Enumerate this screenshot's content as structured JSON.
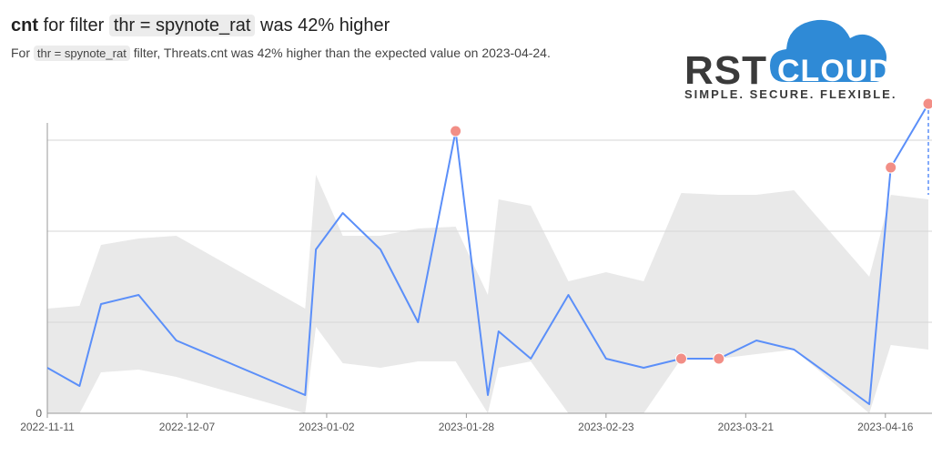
{
  "header": {
    "metric": "cnt",
    "for_filter": "for filter",
    "filter": "thr = spynote_rat",
    "suffix": "was 42% higher"
  },
  "subheader": {
    "prefix": "For",
    "filter": "thr = spynote_rat",
    "text": "filter, Threats.cnt was 42% higher than the expected value on 2023-04-24."
  },
  "logo": {
    "left": "RST",
    "cloud": "CLOUD",
    "tagline": "SIMPLE.  SECURE.  FLEXIBLE.",
    "cloud_color": "#2f8ad6"
  },
  "colors": {
    "line": "#5b8ff9",
    "band": "#e9e9e9",
    "anomaly": "#f28e86",
    "grid": "#d6d6d6",
    "axis": "#999999"
  },
  "chart_data": {
    "type": "line",
    "title": "",
    "xlabel": "",
    "ylabel": "",
    "ylim": [
      0,
      3.2
    ],
    "grid": true,
    "y_ticks": [
      0
    ],
    "x_tick_labels": [
      "2022-11-11",
      "2022-12-07",
      "2023-01-02",
      "2023-01-28",
      "2023-02-23",
      "2023-03-21",
      "2023-04-16"
    ],
    "x_ticks": [
      "2022-11-11",
      "2022-12-07",
      "2023-01-02",
      "2023-01-28",
      "2023-02-23",
      "2023-03-21",
      "2023-04-16"
    ],
    "x_range": [
      "2022-11-11",
      "2023-04-24"
    ],
    "series": [
      {
        "values": [
          [
            "2022-11-11",
            0.5
          ],
          [
            "2022-11-17",
            0.3
          ],
          [
            "2022-11-21",
            1.2
          ],
          [
            "2022-11-28",
            1.3
          ],
          [
            "2022-12-05",
            0.8
          ],
          [
            "2022-12-29",
            0.2
          ],
          [
            "2022-12-31",
            1.8
          ],
          [
            "2023-01-05",
            2.2
          ],
          [
            "2023-01-12",
            1.8
          ],
          [
            "2023-01-19",
            1.0
          ],
          [
            "2023-01-26",
            3.1
          ],
          [
            "2023-02-01",
            0.2
          ],
          [
            "2023-02-03",
            0.9
          ],
          [
            "2023-02-09",
            0.6
          ],
          [
            "2023-02-16",
            1.3
          ],
          [
            "2023-02-23",
            0.6
          ],
          [
            "2023-03-02",
            0.5
          ],
          [
            "2023-03-09",
            0.6
          ],
          [
            "2023-03-16",
            0.6
          ],
          [
            "2023-03-23",
            0.8
          ],
          [
            "2023-03-30",
            0.7
          ],
          [
            "2023-04-13",
            0.1
          ],
          [
            "2023-04-17",
            2.7
          ],
          [
            "2023-04-24",
            3.4
          ]
        ]
      }
    ],
    "band": [
      [
        "2022-11-11",
        0.0,
        1.15
      ],
      [
        "2022-11-17",
        0.0,
        1.18
      ],
      [
        "2022-11-21",
        0.45,
        1.85
      ],
      [
        "2022-11-28",
        0.48,
        1.92
      ],
      [
        "2022-12-05",
        0.4,
        1.95
      ],
      [
        "2022-12-29",
        -0.25,
        1.15
      ],
      [
        "2022-12-31",
        0.95,
        2.62
      ],
      [
        "2023-01-05",
        0.55,
        1.95
      ],
      [
        "2023-01-12",
        0.5,
        1.95
      ],
      [
        "2023-01-19",
        0.57,
        2.03
      ],
      [
        "2023-01-26",
        0.57,
        2.05
      ],
      [
        "2023-02-01",
        -0.3,
        1.3
      ],
      [
        "2023-02-03",
        0.5,
        2.35
      ],
      [
        "2023-02-09",
        0.57,
        2.28
      ],
      [
        "2023-02-16",
        0.0,
        1.45
      ],
      [
        "2023-02-23",
        -0.35,
        1.55
      ],
      [
        "2023-03-02",
        -0.2,
        1.45
      ],
      [
        "2023-03-09",
        0.6,
        2.42
      ],
      [
        "2023-03-16",
        0.6,
        2.4
      ],
      [
        "2023-03-23",
        0.65,
        2.4
      ],
      [
        "2023-03-30",
        0.7,
        2.45
      ],
      [
        "2023-04-13",
        -0.1,
        1.5
      ],
      [
        "2023-04-17",
        0.75,
        2.4
      ],
      [
        "2023-04-24",
        0.7,
        2.35
      ]
    ],
    "anomalies": [
      [
        "2023-01-26",
        3.1
      ],
      [
        "2023-03-09",
        0.6
      ],
      [
        "2023-03-16",
        0.6
      ],
      [
        "2023-04-17",
        2.7
      ],
      [
        "2023-04-24",
        3.4
      ]
    ]
  }
}
